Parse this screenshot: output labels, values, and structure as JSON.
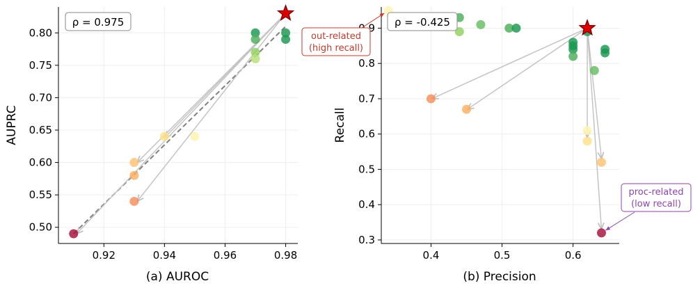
{
  "chart_data": [
    {
      "type": "scatter",
      "xlabel": "(a) AUROC",
      "ylabel": "AUPRC",
      "xlim": [
        0.905,
        0.984
      ],
      "ylim": [
        0.475,
        0.84
      ],
      "xticks": [
        0.92,
        0.94,
        0.96,
        0.98
      ],
      "xtick_labels": [
        "0.92",
        "0.94",
        "0.96",
        "0.98"
      ],
      "yticks": [
        0.5,
        0.55,
        0.6,
        0.65,
        0.7,
        0.75,
        0.8
      ],
      "ytick_labels": [
        "0.50",
        "0.55",
        "0.60",
        "0.65",
        "0.70",
        "0.75",
        "0.80"
      ],
      "grid": true,
      "annotation": "ρ = 0.975",
      "star": {
        "x": 0.98,
        "y": 0.83
      },
      "points": [
        {
          "x": 0.97,
          "y": 0.8,
          "color": "#1a9850"
        },
        {
          "x": 0.97,
          "y": 0.79,
          "color": "#4daf5b"
        },
        {
          "x": 0.97,
          "y": 0.77,
          "color": "#91cf60"
        },
        {
          "x": 0.97,
          "y": 0.76,
          "color": "#b7e075"
        },
        {
          "x": 0.98,
          "y": 0.8,
          "color": "#1a9850"
        },
        {
          "x": 0.98,
          "y": 0.79,
          "color": "#1a9850"
        },
        {
          "x": 0.94,
          "y": 0.64,
          "color": "#fee08b"
        },
        {
          "x": 0.95,
          "y": 0.64,
          "color": "#fff3b0"
        },
        {
          "x": 0.93,
          "y": 0.6,
          "color": "#fdc274"
        },
        {
          "x": 0.93,
          "y": 0.58,
          "color": "#fdae61"
        },
        {
          "x": 0.93,
          "y": 0.54,
          "color": "#f68e5c"
        },
        {
          "x": 0.91,
          "y": 0.49,
          "color": "#a50f3a"
        }
      ],
      "arrows_to": [
        {
          "x": 0.931,
          "y": 0.6
        },
        {
          "x": 0.931,
          "y": 0.54
        },
        {
          "x": 0.94,
          "y": 0.638
        },
        {
          "x": 0.911,
          "y": 0.49
        }
      ],
      "trend_line": {
        "x": [
          0.91,
          0.98
        ],
        "y": [
          0.49,
          0.81
        ]
      }
    },
    {
      "type": "scatter",
      "xlabel": "(b) Precision",
      "ylabel": "Recall",
      "xlim": [
        0.33,
        0.665
      ],
      "ylim": [
        0.29,
        0.96
      ],
      "xticks": [
        0.4,
        0.5,
        0.6
      ],
      "xtick_labels": [
        "0.4",
        "0.5",
        "0.6"
      ],
      "yticks": [
        0.3,
        0.4,
        0.5,
        0.6,
        0.7,
        0.8,
        0.9
      ],
      "ytick_labels": [
        "0.3",
        "0.4",
        "0.5",
        "0.6",
        "0.7",
        "0.8",
        "0.9"
      ],
      "grid": true,
      "annotation": "ρ = -0.425",
      "star": {
        "x": 0.62,
        "y": 0.9
      },
      "points": [
        {
          "x": 0.34,
          "y": 0.95,
          "color": "#fff3b0"
        },
        {
          "x": 0.44,
          "y": 0.93,
          "color": "#4daf5b"
        },
        {
          "x": 0.44,
          "y": 0.89,
          "color": "#91cf60"
        },
        {
          "x": 0.47,
          "y": 0.91,
          "color": "#66bd63"
        },
        {
          "x": 0.51,
          "y": 0.9,
          "color": "#4daf5b"
        },
        {
          "x": 0.52,
          "y": 0.9,
          "color": "#1a9850"
        },
        {
          "x": 0.62,
          "y": 0.89,
          "color": "#1a9850"
        },
        {
          "x": 0.6,
          "y": 0.86,
          "color": "#1a9850"
        },
        {
          "x": 0.6,
          "y": 0.85,
          "color": "#1a9850"
        },
        {
          "x": 0.6,
          "y": 0.84,
          "color": "#1a9850"
        },
        {
          "x": 0.6,
          "y": 0.82,
          "color": "#4daf5b"
        },
        {
          "x": 0.645,
          "y": 0.84,
          "color": "#1a9850"
        },
        {
          "x": 0.645,
          "y": 0.83,
          "color": "#1a9850"
        },
        {
          "x": 0.63,
          "y": 0.78,
          "color": "#66bd63"
        },
        {
          "x": 0.4,
          "y": 0.7,
          "color": "#f68e5c"
        },
        {
          "x": 0.45,
          "y": 0.67,
          "color": "#fdae61"
        },
        {
          "x": 0.62,
          "y": 0.61,
          "color": "#fff3b0"
        },
        {
          "x": 0.62,
          "y": 0.58,
          "color": "#fee08b"
        },
        {
          "x": 0.64,
          "y": 0.52,
          "color": "#fdc274"
        },
        {
          "x": 0.64,
          "y": 0.32,
          "color": "#a50f3a"
        }
      ],
      "arrows_to": [
        {
          "x": 0.401,
          "y": 0.7
        },
        {
          "x": 0.451,
          "y": 0.67
        },
        {
          "x": 0.62,
          "y": 0.59
        },
        {
          "x": 0.64,
          "y": 0.53
        },
        {
          "x": 0.64,
          "y": 0.33
        }
      ],
      "callouts": [
        {
          "text": [
            "out-related",
            "(high recall)"
          ],
          "color": "#c0392b",
          "target": {
            "x": 0.34,
            "y": 0.95
          }
        },
        {
          "text": [
            "proc-related",
            "(low recall)"
          ],
          "color": "#8e44ad",
          "target": {
            "x": 0.64,
            "y": 0.32
          }
        }
      ]
    }
  ]
}
